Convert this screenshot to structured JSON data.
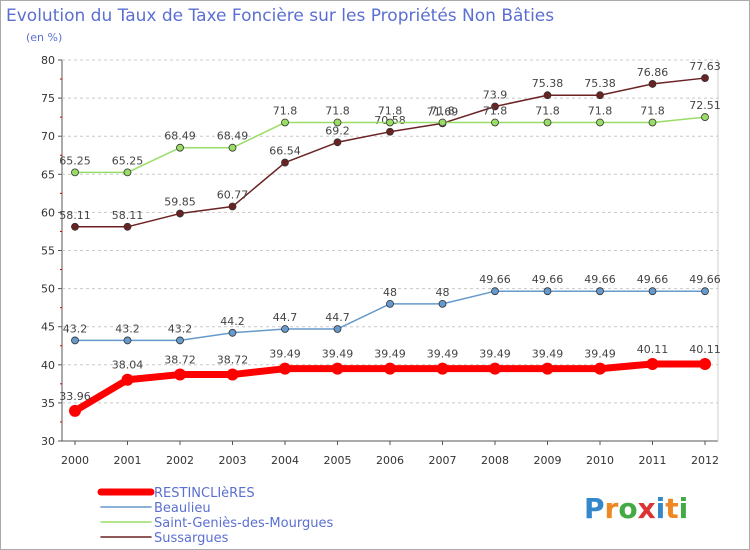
{
  "chart_data": {
    "type": "line",
    "title": "Evolution du Taux de Taxe Foncière sur les Propriétés Non Bâties",
    "subtitle": "(en %)",
    "xlabel": "",
    "ylabel": "",
    "categories": [
      "2000",
      "2001",
      "2002",
      "2003",
      "2004",
      "2005",
      "2006",
      "2007",
      "2008",
      "2009",
      "2010",
      "2011",
      "2012"
    ],
    "ylim": [
      30,
      80
    ],
    "yticks": [
      "30",
      "35",
      "40",
      "45",
      "50",
      "55",
      "60",
      "65",
      "70",
      "75",
      "80"
    ],
    "grid": "horizontal dashed",
    "legend_position": "bottom-left",
    "series": [
      {
        "name": "RESTINCLIèRES",
        "color": "#ff0000",
        "values": [
          33.96,
          38.04,
          38.72,
          38.72,
          39.49,
          39.49,
          39.49,
          39.49,
          39.49,
          39.49,
          39.49,
          40.11,
          40.11
        ],
        "labels": [
          "33.96",
          "38.04",
          "38.72",
          "38.72",
          "39.49",
          "39.49",
          "39.49",
          "39.49",
          "39.49",
          "39.49",
          "39.49",
          "40.11",
          "40.11"
        ]
      },
      {
        "name": "Beaulieu",
        "color": "#6699cc",
        "values": [
          43.2,
          43.2,
          43.2,
          44.2,
          44.7,
          44.7,
          48,
          48,
          49.66,
          49.66,
          49.66,
          49.66,
          49.66
        ],
        "labels": [
          "43.2",
          "43.2",
          "43.2",
          "44.2",
          "44.7",
          "44.7",
          "48",
          "48",
          "49.66",
          "49.66",
          "49.66",
          "49.66",
          "49.66"
        ]
      },
      {
        "name": "Saint-Geniès-des-Mourgues",
        "color": "#99dd66",
        "values": [
          65.25,
          65.25,
          68.49,
          68.49,
          71.8,
          71.8,
          71.8,
          71.8,
          71.8,
          71.8,
          71.8,
          71.8,
          72.51
        ],
        "labels": [
          "65.25",
          "65.25",
          "68.49",
          "68.49",
          "71.8",
          "71.8",
          "71.8",
          "71.8",
          "71.8",
          "71.8",
          "71.8",
          "71.8",
          "72.51"
        ]
      },
      {
        "name": "Sussargues",
        "color": "#6b2222",
        "values": [
          58.11,
          58.11,
          59.85,
          60.77,
          66.54,
          69.2,
          70.58,
          71.69,
          73.9,
          75.38,
          75.38,
          76.86,
          77.63
        ],
        "labels": [
          "58.11",
          "58.11",
          "59.85",
          "60.77",
          "66.54",
          "69.2",
          "70.58",
          "71.69",
          "73.9",
          "75.38",
          "75.38",
          "76.86",
          "77.63"
        ]
      }
    ]
  },
  "logo": {
    "text": "Proxiti"
  }
}
